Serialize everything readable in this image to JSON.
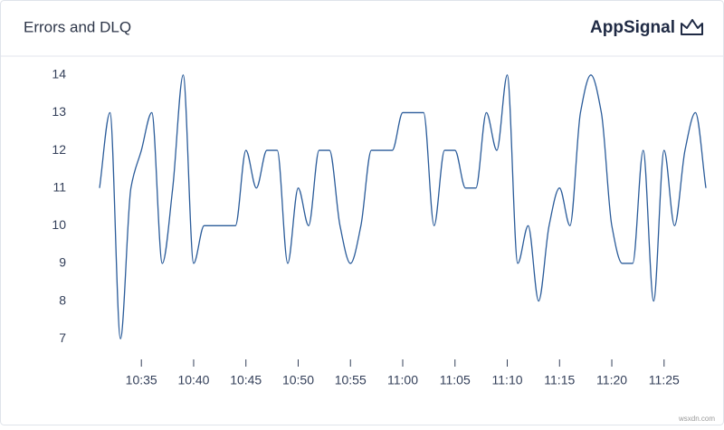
{
  "header": {
    "title": "Errors and DLQ",
    "brand": "AppSignal"
  },
  "watermark": "wsxdn.com",
  "chart_data": {
    "type": "line",
    "categories": [
      null,
      null,
      null,
      null,
      "10:35",
      null,
      null,
      null,
      null,
      "10:40",
      null,
      null,
      null,
      null,
      "10:45",
      null,
      null,
      null,
      null,
      "10:50",
      null,
      null,
      null,
      null,
      "10:55",
      null,
      null,
      null,
      null,
      "11:00",
      null,
      null,
      null,
      null,
      "11:05",
      null,
      null,
      null,
      null,
      "11:10",
      null,
      null,
      null,
      null,
      "11:15",
      null,
      null,
      null,
      null,
      "11:20",
      null,
      null,
      null,
      null,
      "11:25",
      null,
      null,
      null,
      null
    ],
    "values": [
      11,
      13,
      7,
      11,
      12,
      13,
      9,
      11,
      14,
      9,
      10,
      10,
      10,
      10,
      12,
      11,
      12,
      12,
      9,
      11,
      10,
      12,
      12,
      10,
      9,
      10,
      12,
      12,
      12,
      13,
      13,
      13,
      10,
      12,
      12,
      11,
      11,
      13,
      12,
      14,
      9,
      10,
      8,
      10,
      11,
      10,
      13,
      14,
      13,
      10,
      9,
      9,
      12,
      8,
      12,
      10,
      12,
      13,
      11
    ],
    "color": "#2b5c9a",
    "ylim": [
      6.5,
      14.5
    ],
    "yticks": [
      7,
      8,
      9,
      10,
      11,
      12,
      13,
      14
    ],
    "grid": false
  }
}
